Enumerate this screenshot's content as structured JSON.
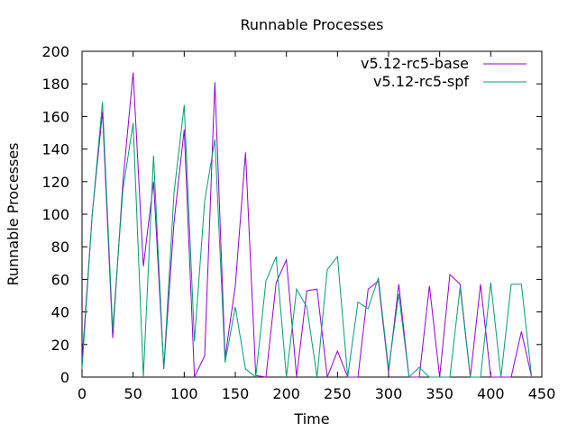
{
  "chart_data": {
    "type": "line",
    "title": "Runnable Processes",
    "xlabel": "Time",
    "ylabel": "Runnable Processes",
    "xlim": [
      0,
      450
    ],
    "ylim": [
      0,
      200
    ],
    "xticks": [
      0,
      50,
      100,
      150,
      200,
      250,
      300,
      350,
      400,
      450
    ],
    "yticks": [
      0,
      20,
      40,
      60,
      80,
      100,
      120,
      140,
      160,
      180,
      200
    ],
    "legend_position": "top-right",
    "grid": false,
    "series": [
      {
        "name": "v5.12-rc5-base",
        "color": "#9400d3",
        "x": [
          0,
          10,
          20,
          30,
          40,
          50,
          60,
          70,
          80,
          90,
          100,
          110,
          120,
          130,
          140,
          150,
          160,
          170,
          180,
          190,
          200,
          210,
          220,
          230,
          240,
          250,
          260,
          270,
          280,
          290,
          300,
          310,
          320,
          330,
          340,
          350,
          360,
          370,
          380,
          390,
          400,
          410,
          420,
          430,
          440
        ],
        "y": [
          10,
          100,
          163,
          24,
          120,
          187,
          68,
          120,
          5,
          95,
          152,
          0,
          13,
          181,
          12,
          56,
          138,
          1,
          0,
          58,
          72,
          0,
          53,
          54,
          0,
          16,
          0,
          0,
          54,
          59,
          3,
          57,
          0,
          0,
          56,
          0,
          63,
          57,
          0,
          57,
          0,
          0,
          0,
          28,
          0
        ]
      },
      {
        "name": "v5.12-rc5-spf",
        "color": "#009e73",
        "x": [
          0,
          10,
          20,
          30,
          40,
          50,
          60,
          70,
          80,
          90,
          100,
          110,
          120,
          130,
          140,
          150,
          160,
          170,
          180,
          190,
          200,
          210,
          220,
          230,
          240,
          250,
          260,
          270,
          280,
          290,
          300,
          310,
          320,
          330,
          340,
          350,
          360,
          370,
          380,
          390,
          400,
          410,
          420,
          430,
          440
        ],
        "y": [
          5,
          100,
          169,
          29,
          115,
          156,
          0,
          136,
          5,
          113,
          167,
          22,
          108,
          146,
          9,
          43,
          5,
          0,
          59,
          74,
          0,
          54,
          43,
          0,
          66,
          74,
          0,
          46,
          42,
          61,
          5,
          51,
          0,
          6,
          0,
          0,
          0,
          55,
          0,
          0,
          58,
          0,
          57,
          57,
          0
        ]
      }
    ]
  }
}
